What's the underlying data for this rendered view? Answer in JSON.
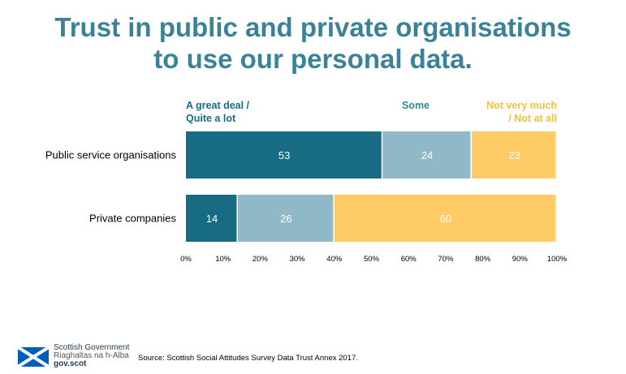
{
  "title": {
    "line1": "Trust in public and private organisations",
    "line2": "to use our personal data."
  },
  "chart_data": {
    "type": "bar",
    "orientation": "horizontal",
    "stacked": true,
    "categories": [
      "Public service organisations",
      "Private companies"
    ],
    "series": [
      {
        "name": "A great deal / Quite a lot",
        "name_lines": [
          "A great deal /",
          "Quite a lot"
        ],
        "values": [
          53,
          14
        ],
        "color": "#176b82",
        "legend_color": "#176b82"
      },
      {
        "name": "Some",
        "name_lines": [
          "Some"
        ],
        "values": [
          24,
          26
        ],
        "color": "#8fb9c6",
        "legend_color": "#3a8396"
      },
      {
        "name": "Not very much / Not at all",
        "name_lines": [
          "Not very much",
          "/ Not at all"
        ],
        "values": [
          23,
          60
        ],
        "color": "#ffcb66",
        "legend_color": "#f0c040"
      }
    ],
    "xlim": [
      0,
      100
    ],
    "x_ticks": [
      "0%",
      "10%",
      "20%",
      "30%",
      "40%",
      "50%",
      "60%",
      "70%",
      "80%",
      "90%",
      "100%"
    ],
    "data_label_color": "#ffffff",
    "grid": false,
    "legend_placement": "top"
  },
  "footer": {
    "logo_line1": "Scottish Government",
    "logo_line2": "Riaghaltas na h-Alba",
    "logo_line3": "gov.scot",
    "source": "Source: Scottish Social Attitudes Survey Data Trust Annex 2017."
  },
  "colors": {
    "title": "#3a8396",
    "flag_blue": "#005eb8"
  }
}
